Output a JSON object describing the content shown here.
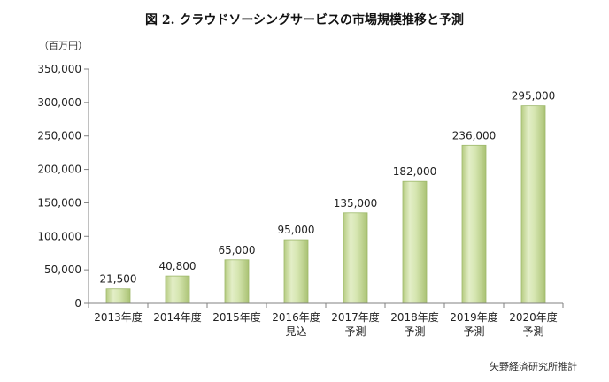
{
  "chart_data": {
    "type": "bar",
    "title": "図 2. クラウドソーシングサービスの市場規模推移と予測",
    "unit_label": "（百万円）",
    "credit": "矢野経済研究所推計",
    "categories": [
      [
        "2013年度"
      ],
      [
        "2014年度"
      ],
      [
        "2015年度"
      ],
      [
        "2016年度",
        "見込"
      ],
      [
        "2017年度",
        "予測"
      ],
      [
        "2018年度",
        "予測"
      ],
      [
        "2019年度",
        "予測"
      ],
      [
        "2020年度",
        "予測"
      ]
    ],
    "values": [
      21500,
      40800,
      65000,
      95000,
      135000,
      182000,
      236000,
      295000
    ],
    "value_labels": [
      "21,500",
      "40,800",
      "65,000",
      "95,000",
      "135,000",
      "182,000",
      "236,000",
      "295,000"
    ],
    "ylim": [
      0,
      350000
    ],
    "yticks": [
      0,
      50000,
      100000,
      150000,
      200000,
      250000,
      300000,
      350000
    ],
    "ytick_labels": [
      "0",
      "50,000",
      "100,000",
      "150,000",
      "200,000",
      "250,000",
      "300,000",
      "350,000"
    ],
    "grid": false,
    "bar_color": "#c9dc9f",
    "bar_edge_color": "#9db86a"
  }
}
